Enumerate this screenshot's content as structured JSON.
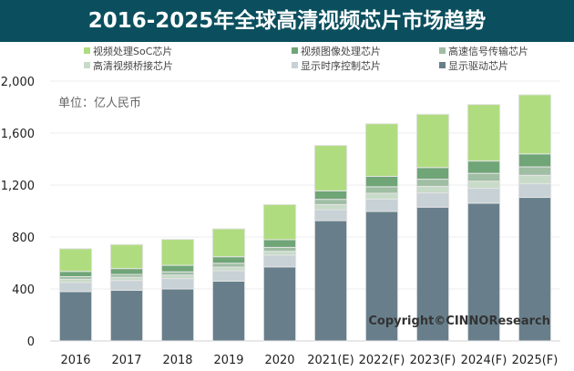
{
  "title": "2016-2025年全球高清视频芯片市场趋势",
  "chart_data": {
    "type": "bar",
    "stacked": true,
    "title": "2016-2025年全球高清视频芯片市场趋势",
    "ylabel": "单位：亿人民币",
    "ylim": [
      0,
      2000
    ],
    "yticks": [
      "0",
      "400",
      "800",
      "1,200",
      "1,600",
      "2,000"
    ],
    "ytick_values": [
      0,
      400,
      800,
      1200,
      1600,
      2000
    ],
    "grid": true,
    "legend_position": "top",
    "categories": [
      "2016",
      "2017",
      "2018",
      "2019",
      "2020",
      "2021(E)",
      "2022(F)",
      "2023(F)",
      "2024(F)",
      "2025(F)"
    ],
    "series": [
      {
        "name": "显示驱动芯片",
        "color": "#687f8b",
        "values": [
          380,
          390,
          400,
          460,
          570,
          926,
          997,
          1030,
          1060,
          1105
        ]
      },
      {
        "name": "显示时序控制芯片",
        "color": "#c7d1d6",
        "values": [
          70,
          75,
          80,
          80,
          90,
          84,
          95,
          110,
          115,
          105
        ]
      },
      {
        "name": "高清视频桥接芯片",
        "color": "#c8dbc9",
        "values": [
          25,
          25,
          27,
          28,
          30,
          40,
          45,
          50,
          55,
          65
        ]
      },
      {
        "name": "高速信号传输芯片",
        "color": "#9fbea3",
        "values": [
          20,
          22,
          25,
          30,
          30,
          40,
          50,
          55,
          60,
          65
        ]
      },
      {
        "name": "视频图像处理芯片",
        "color": "#6fa577",
        "values": [
          40,
          45,
          50,
          50,
          60,
          65,
          80,
          90,
          95,
          100
        ]
      },
      {
        "name": "视频处理SoC芯片",
        "color": "#b0dc80",
        "values": [
          175,
          185,
          200,
          215,
          270,
          350,
          405,
          410,
          435,
          455
        ]
      }
    ],
    "legend_order": [
      "视频处理SoC芯片",
      "视频图像处理芯片",
      "高速信号传输芯片",
      "高清视频桥接芯片",
      "显示时序控制芯片",
      "显示驱动芯片"
    ],
    "annotation": "Copyright©CINNOResearch"
  }
}
